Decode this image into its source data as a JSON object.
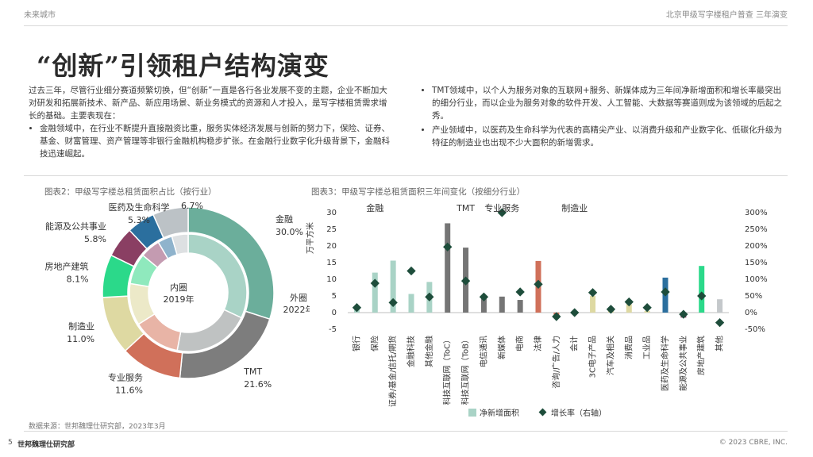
{
  "header": {
    "left": "未来城市",
    "right": "北京甲级写字楼租户普查 三年演变"
  },
  "title": "“创新”引领租户结构演变",
  "intro": {
    "para": "过去三年，尽管行业细分赛道频繁切换，但“创新”一直是各行各业发展不变的主题，企业不断加大对研发和拓展新技术、新产品、新应用场景、新业务模式的资源和人才投入，是写字楼租赁需求增长的基础。主要表现在：",
    "bullet1": "金融领域中，在行业不断提升直接融资比重，服务实体经济发展与创新的努力下，保险、证券、基金、财富管理、资产管理等非银行金融机构稳步扩张。在金融行业数字化升级背景下，金融科技迅速崛起。"
  },
  "right_col": {
    "bullet1": "TMT领域中，以个人为服务对象的互联网+服务、新媒体成为三年间净新增面积和增长率最突出的细分行业，而以企业为服务对象的软件开发、人工智能、大数据等赛道则成为该领域的后起之秀。",
    "bullet2": "产业领域中，以医药及生命科学为代表的高精尖产业、以消费升级和产业数字化、低碳化升级为特征的制造业也出现不少大面积的新增需求。"
  },
  "chart_data": [
    {
      "type": "pie",
      "title": "图表2：甲级写字楼总租赁面积占比（按行业）",
      "center_labels": [
        "内圈",
        "2019年",
        "外圈",
        "2022年"
      ],
      "categories": [
        "金融",
        "TMT",
        "专业服务",
        "制造业",
        "房地产建筑",
        "能源及公共事业",
        "医药及生命科学",
        "其他"
      ],
      "outer_values": [
        30.0,
        21.6,
        11.6,
        11.0,
        8.1,
        5.8,
        5.3,
        6.7
      ],
      "outer_labels": [
        "30.0%",
        "21.6%",
        "11.6%",
        "11.0%",
        "8.1%",
        "5.8%",
        "5.3%",
        "6.7%"
      ],
      "inner_values": [
        32.0,
        21.0,
        13.0,
        11.5,
        8.5,
        5.5,
        4.0,
        4.5
      ],
      "colors": [
        "#6bae9b",
        "#7d7d7d",
        "#d0705a",
        "#ded9a2",
        "#2bd98a",
        "#8a3f63",
        "#2b6f9e",
        "#bcc2c6"
      ],
      "inner_colors": [
        "#a9d3c6",
        "#bfc2c2",
        "#e8b4a6",
        "#ece9c8",
        "#8fe9bd",
        "#c49bb1",
        "#8fb3cc",
        "#dde0e2"
      ]
    },
    {
      "type": "bar",
      "title": "图表3：甲级写字楼总租赁面积三年间变化（按细分行业）",
      "ylabel": "万平方米",
      "ylim": [
        -5,
        30
      ],
      "y2lim": [
        -50,
        300
      ],
      "yticks": [
        "30",
        "25",
        "20",
        "15",
        "10",
        "5",
        "0",
        "-5"
      ],
      "y2ticks": [
        "300%",
        "250%",
        "200%",
        "150%",
        "100%",
        "50%",
        "0%",
        "-50%"
      ],
      "groups": [
        "金融",
        "TMT",
        "专业服务",
        "制造业"
      ],
      "categories": [
        "银行",
        "保险",
        "证券/基金/信托/期货",
        "金融科技",
        "其他金融",
        "科技互联网（ToC）",
        "科技互联网（ToB）",
        "电信通讯",
        "新媒体",
        "电商",
        "法律",
        "咨询/广告/人力",
        "会计",
        "3C电子产品",
        "汽车及相关",
        "消费品",
        "工业品",
        "医药及生命科学",
        "能源及公共事业",
        "房地产建筑",
        "其他"
      ],
      "series": [
        {
          "name": "净新增面积",
          "values": [
            1.5,
            12,
            15.6,
            5.6,
            9.2,
            26.8,
            19.5,
            4.2,
            4.8,
            3.8,
            15.5,
            -1.0,
            0.3,
            5.0,
            0.8,
            2.5,
            0.5,
            10.5,
            -1.5,
            14,
            4.0
          ]
        },
        {
          "name": "增长率（右轴）",
          "values": [
            15,
            88,
            30,
            125,
            47,
            197,
            95,
            47,
            300,
            62,
            85,
            -12,
            0,
            60,
            10,
            32,
            15,
            62,
            -5,
            50,
            -30
          ]
        }
      ],
      "bar_colors": [
        "#a9d3c6",
        "#a9d3c6",
        "#a9d3c6",
        "#a9d3c6",
        "#a9d3c6",
        "#757575",
        "#757575",
        "#757575",
        "#757575",
        "#757575",
        "#d0705a",
        "#d0705a",
        "#d0705a",
        "#ded9a2",
        "#ded9a2",
        "#ded9a2",
        "#ded9a2",
        "#2b6f9e",
        "#8a3f63",
        "#2bd98a",
        "#c4c8cb"
      ],
      "marker_color": "#1e4d3b",
      "legend": [
        "净新增面积",
        "增长率（右轴）"
      ],
      "legend_position": "bottom"
    }
  ],
  "footer": {
    "source": "数据来源：世邦魏理仕研究部，2023年3月",
    "page": "5",
    "org": "世邦魏理仕研究部",
    "copyright": "© 2023 CBRE, INC."
  }
}
